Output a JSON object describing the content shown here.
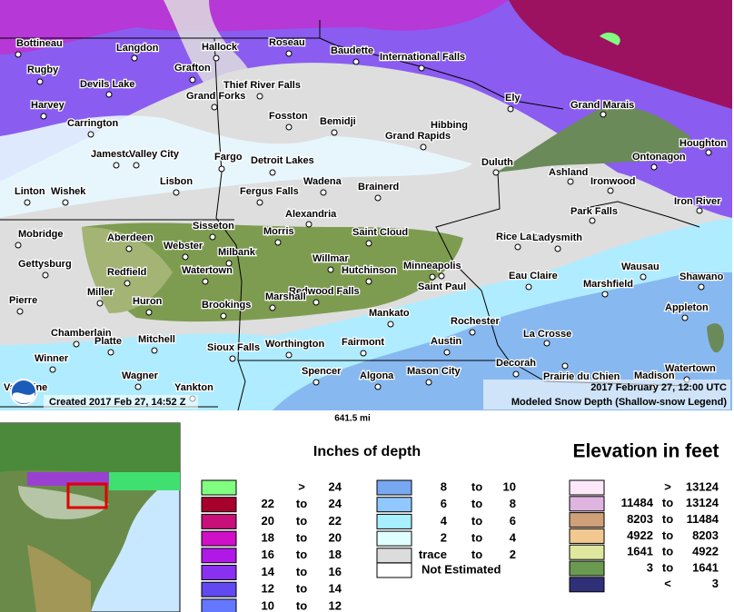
{
  "map": {
    "cities": [
      "Bottineau",
      "Langdon",
      "Hallock",
      "Roseau",
      "Baudette",
      "International Falls",
      "Rugby",
      "Grafton",
      "Devils Lake",
      "Thief River Falls",
      "Grand Forks",
      "Ely",
      "Grand Marais",
      "Harvey",
      "Fosston",
      "Bemidji",
      "Hibbing",
      "Carrington",
      "Grand Rapids",
      "Houghton",
      "Jamestown",
      "Valley City",
      "Fargo",
      "Detroit Lakes",
      "Ontonagon",
      "Duluth",
      "Ashland",
      "Ironwood",
      "Lisbon",
      "Wadena",
      "Brainerd",
      "Linton",
      "Wishek",
      "Fergus Falls",
      "Iron River",
      "Park Falls",
      "Alexandria",
      "Sisseton",
      "Morris",
      "Saint Cloud",
      "Mobridge",
      "Aberdeen",
      "Rice Lake",
      "Ladysmith",
      "Webster",
      "Milbank",
      "Willmar",
      "Gettysburg",
      "Minneapolis",
      "Hutchinson",
      "Watertown",
      "Redfield",
      "Wausau",
      "Eau Claire",
      "Shawano",
      "Saint Paul",
      "Marshfield",
      "Miller",
      "Redwood Falls",
      "Marshall",
      "Pierre",
      "Huron",
      "Brookings",
      "Appleton",
      "Mankato",
      "Rochester",
      "Chamberlain",
      "La Crosse",
      "Platte",
      "Mitchell",
      "Austin",
      "Worthington",
      "Fairmont",
      "Sioux Falls",
      "Winner",
      "Decorah",
      "Prairie du Chien",
      "Wagner",
      "Spencer",
      "Algona",
      "Mason City",
      "Madison",
      "Watertown",
      "Yankton",
      "Valentine"
    ],
    "created": "Created 2017 Feb 27, 14:52 Z",
    "valid_time": "2017 February 27, 12:00 UTC",
    "product": "Modeled Snow Depth (Shallow-snow Legend)",
    "scale": "641.5 mi"
  },
  "depth_legend": {
    "title": "Inches of depth",
    "rows": [
      {
        "color": "#80ff80",
        "op": ">",
        "high": "24"
      },
      {
        "color": "#a8002c",
        "low": "22",
        "sep": "to",
        "high": "24"
      },
      {
        "color": "#c8107a",
        "low": "20",
        "sep": "to",
        "high": "22"
      },
      {
        "color": "#d010c8",
        "low": "18",
        "sep": "to",
        "high": "20"
      },
      {
        "color": "#b018e8",
        "low": "16",
        "sep": "to",
        "high": "18"
      },
      {
        "color": "#8a30f0",
        "low": "14",
        "sep": "to",
        "high": "16"
      },
      {
        "color": "#6248f0",
        "low": "12",
        "sep": "to",
        "high": "14"
      },
      {
        "color": "#6478ff",
        "low": "10",
        "sep": "to",
        "high": "12"
      },
      {
        "color": "#78a8f0",
        "low": "8",
        "sep": "to",
        "high": "10"
      },
      {
        "color": "#90c8ff",
        "low": "6",
        "sep": "to",
        "high": "8"
      },
      {
        "color": "#a8f0ff",
        "low": "4",
        "sep": "to",
        "high": "6"
      },
      {
        "color": "#e0ffff",
        "low": "2",
        "sep": "to",
        "high": "4"
      },
      {
        "color": "#dcdcdc",
        "low": "trace",
        "sep": "to",
        "high": "2"
      }
    ],
    "not_estimated": "Not Estimated"
  },
  "elevation_legend": {
    "title": "Elevation in feet",
    "rows": [
      {
        "color": "#fde8fa",
        "op": ">",
        "high": "13124"
      },
      {
        "color": "#e0b4e0",
        "low": "11484",
        "sep": "to",
        "high": "13124"
      },
      {
        "color": "#d0a078",
        "low": "8203",
        "sep": "to",
        "high": "11484"
      },
      {
        "color": "#f0c890",
        "low": "4922",
        "sep": "to",
        "high": "8203"
      },
      {
        "color": "#e0e8a0",
        "low": "1641",
        "sep": "to",
        "high": "4922"
      },
      {
        "color": "#6a9a50",
        "low": "3",
        "sep": "to",
        "high": "1641"
      },
      {
        "color": "#303078",
        "op": "<",
        "high": "3"
      }
    ]
  }
}
